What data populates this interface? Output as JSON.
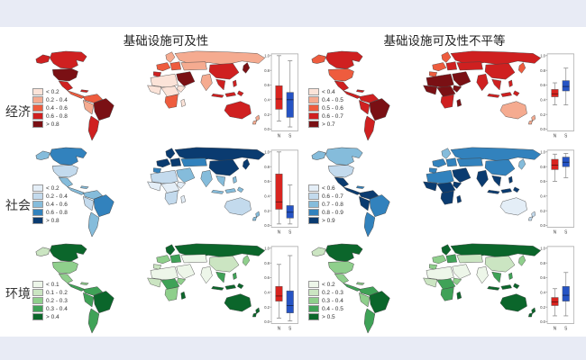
{
  "page": {
    "background": "#e8ebf5",
    "figure_background": "#ffffff"
  },
  "headers": {
    "left": "基础设施可及性",
    "right": "基础设施可及性不平等"
  },
  "rows": [
    {
      "label": "经济"
    },
    {
      "label": "社会"
    },
    {
      "label": "环境"
    }
  ],
  "boxplot_axis": {
    "y_ticks": [
      "1.0",
      "0.8",
      "0.6",
      "0.4",
      "0.2",
      "0.0"
    ],
    "ylim": [
      0,
      1
    ],
    "n_label": "N",
    "s_label": "S",
    "n_color": "#d8241f",
    "s_color": "#2553c4"
  },
  "chart_data": [
    {
      "id": "economy-access",
      "type": "choropleth+box",
      "row": "经济",
      "column": "基础设施可及性",
      "palette": [
        "#fbe3d8",
        "#f5ab90",
        "#ee5c3e",
        "#cf2020",
        "#7a1014"
      ],
      "legend": [
        "< 0.2",
        "0.2 - 0.4",
        "0.4 - 0.6",
        "0.6 - 0.8",
        "> 0.8"
      ],
      "regions": {
        "americas": {
          "alaska": 3,
          "canada": 3,
          "usa": 4,
          "mexico": 3,
          "camerica": 2,
          "caribbean": 3,
          "colombia": 2,
          "peru": 1,
          "brazil": 4,
          "argentina": 3
        },
        "eastern": {
          "scandinavia": 1,
          "weurope": 2,
          "iberia": 3,
          "eeurope": 2,
          "russia": 1,
          "casia": 1,
          "mideast": 4,
          "nafrica": 0,
          "wafrica": 0,
          "cafrica": 0,
          "eafrica": 0,
          "safrica": 2,
          "madagascar": 0,
          "india": 1,
          "china": 3,
          "seasia": 3,
          "indonesia": 3,
          "philippines": 3,
          "japan": 4,
          "australia": 3,
          "nz": 1
        }
      },
      "boxplot": {
        "N": {
          "whisker_low": 0.11,
          "q1": 0.27,
          "median": 0.41,
          "q3": 0.59,
          "whisker_high": 1.0
        },
        "S": {
          "whisker_low": 0.03,
          "q1": 0.16,
          "median": 0.4,
          "q3": 0.5,
          "whisker_high": 0.93
        }
      }
    },
    {
      "id": "economy-inequality",
      "type": "choropleth+box",
      "row": "经济",
      "column": "基础设施可及性不平等",
      "palette": [
        "#fbe3d8",
        "#f5ab90",
        "#ee5c3e",
        "#cf2020",
        "#7a1014"
      ],
      "legend": [
        "< 0.4",
        "0.4 - 0.5",
        "0.5 - 0.6",
        "0.6 - 0.7",
        "> 0.7"
      ],
      "regions": {
        "americas": {
          "alaska": 2,
          "canada": 3,
          "usa": 2,
          "mexico": 3,
          "camerica": 3,
          "caribbean": 3,
          "colombia": 3,
          "peru": 3,
          "brazil": 4,
          "argentina": 3
        },
        "eastern": {
          "scandinavia": 2,
          "weurope": 2,
          "iberia": 2,
          "eeurope": 3,
          "russia": 3,
          "casia": 3,
          "mideast": 4,
          "nafrica": 4,
          "wafrica": 4,
          "cafrica": 4,
          "eafrica": 4,
          "safrica": 3,
          "madagascar": 4,
          "india": 3,
          "china": 3,
          "seasia": 3,
          "indonesia": 3,
          "philippines": 3,
          "japan": 2,
          "australia": 1,
          "nz": 1
        }
      },
      "boxplot": {
        "N": {
          "whisker_low": 0.33,
          "q1": 0.44,
          "median": 0.48,
          "q3": 0.54,
          "whisker_high": 0.63
        },
        "S": {
          "whisker_low": 0.33,
          "q1": 0.52,
          "median": 0.58,
          "q3": 0.66,
          "whisker_high": 0.83
        }
      }
    },
    {
      "id": "society-access",
      "type": "choropleth+box",
      "row": "社会",
      "column": "基础设施可及性",
      "palette": [
        "#e4eef7",
        "#c3daed",
        "#85bcdb",
        "#3282bd",
        "#0a3b70"
      ],
      "legend": [
        "< 0.2",
        "0.2 - 0.4",
        "0.4 - 0.6",
        "0.6 - 0.8",
        "> 0.8"
      ],
      "regions": {
        "americas": {
          "alaska": 2,
          "canada": 3,
          "usa": 1,
          "mexico": 2,
          "camerica": 2,
          "caribbean": 2,
          "colombia": 2,
          "peru": 1,
          "brazil": 3,
          "argentina": 2
        },
        "eastern": {
          "scandinavia": 4,
          "weurope": 4,
          "iberia": 3,
          "eeurope": 4,
          "russia": 4,
          "casia": 3,
          "mideast": 2,
          "nafrica": 1,
          "wafrica": 0,
          "cafrica": 0,
          "eafrica": 0,
          "safrica": 1,
          "madagascar": 0,
          "india": 2,
          "china": 4,
          "seasia": 2,
          "indonesia": 2,
          "philippines": 2,
          "japan": 4,
          "australia": 1,
          "nz": 2
        }
      },
      "boxplot": {
        "N": {
          "whisker_low": 0.02,
          "q1": 0.22,
          "median": 0.32,
          "q3": 0.7,
          "whisker_high": 1.0
        },
        "S": {
          "whisker_low": 0.02,
          "q1": 0.1,
          "median": 0.18,
          "q3": 0.27,
          "whisker_high": 0.55
        }
      }
    },
    {
      "id": "society-inequality",
      "type": "choropleth+box",
      "row": "社会",
      "column": "基础设施可及性不平等",
      "palette": [
        "#e4eef7",
        "#c3daed",
        "#85bcdb",
        "#3282bd",
        "#0a3b70"
      ],
      "legend": [
        "< 0.6",
        "0.6 - 0.7",
        "0.7 - 0.8",
        "0.8 - 0.9",
        "> 0.9"
      ],
      "regions": {
        "americas": {
          "alaska": 2,
          "canada": 2,
          "usa": 1,
          "mexico": 4,
          "camerica": 4,
          "caribbean": 3,
          "colombia": 4,
          "peru": 4,
          "brazil": 3,
          "argentina": 3
        },
        "eastern": {
          "scandinavia": 2,
          "weurope": 3,
          "iberia": 3,
          "eeurope": 3,
          "russia": 3,
          "casia": 3,
          "mideast": 4,
          "nafrica": 3,
          "wafrica": 4,
          "cafrica": 4,
          "eafrica": 4,
          "safrica": 4,
          "madagascar": 4,
          "india": 4,
          "china": 3,
          "seasia": 4,
          "indonesia": 4,
          "philippines": 4,
          "japan": 2,
          "australia": 0,
          "nz": 1
        }
      },
      "boxplot": {
        "N": {
          "whisker_low": 0.6,
          "q1": 0.76,
          "median": 0.82,
          "q3": 0.9,
          "whisker_high": 0.97
        },
        "S": {
          "whisker_low": 0.65,
          "q1": 0.8,
          "median": 0.86,
          "q3": 0.93,
          "whisker_high": 0.98
        }
      }
    },
    {
      "id": "environment-access",
      "type": "choropleth+box",
      "row": "环境",
      "column": "基础设施可及性",
      "palette": [
        "#edf6e9",
        "#cbe5c2",
        "#8fcf8c",
        "#3fa257",
        "#0b662b"
      ],
      "legend": [
        "< 0.1",
        "0.1 - 0.2",
        "0.2 - 0.3",
        "0.3 - 0.4",
        "> 0.4"
      ],
      "regions": {
        "americas": {
          "alaska": 1,
          "canada": 4,
          "usa": 2,
          "mexico": 2,
          "camerica": 3,
          "caribbean": 2,
          "colombia": 3,
          "peru": 3,
          "brazil": 4,
          "argentina": 3
        },
        "eastern": {
          "scandinavia": 4,
          "weurope": 2,
          "iberia": 1,
          "eeurope": 3,
          "russia": 4,
          "casia": 0,
          "mideast": 0,
          "nafrica": 0,
          "wafrica": 1,
          "cafrica": 3,
          "eafrica": 2,
          "safrica": 2,
          "madagascar": 4,
          "india": 0,
          "china": 1,
          "seasia": 3,
          "indonesia": 4,
          "philippines": 3,
          "japan": 2,
          "australia": 4,
          "nz": 4
        }
      },
      "boxplot": {
        "N": {
          "whisker_low": 0.05,
          "q1": 0.28,
          "median": 0.35,
          "q3": 0.48,
          "whisker_high": 0.78
        },
        "S": {
          "whisker_low": 0.01,
          "q1": 0.12,
          "median": 0.22,
          "q3": 0.42,
          "whisker_high": 0.9
        }
      }
    },
    {
      "id": "environment-inequality",
      "type": "choropleth+box",
      "row": "环境",
      "column": "基础设施可及性不平等",
      "palette": [
        "#edf6e9",
        "#cbe5c2",
        "#8fcf8c",
        "#3fa257",
        "#0b662b"
      ],
      "legend": [
        "< 0.2",
        "0.2 - 0.3",
        "0.3 - 0.4",
        "0.4 - 0.5",
        "> 0.5"
      ],
      "regions": {
        "americas": {
          "alaska": 1,
          "canada": 4,
          "usa": 2,
          "mexico": 2,
          "camerica": 3,
          "caribbean": 2,
          "colombia": 3,
          "peru": 2,
          "brazil": 4,
          "argentina": 3
        },
        "eastern": {
          "scandinavia": 4,
          "weurope": 2,
          "iberia": 2,
          "eeurope": 3,
          "russia": 4,
          "casia": 1,
          "mideast": 0,
          "nafrica": 0,
          "wafrica": 1,
          "cafrica": 3,
          "eafrica": 2,
          "safrica": 3,
          "madagascar": 4,
          "india": 0,
          "china": 1,
          "seasia": 3,
          "indonesia": 4,
          "philippines": 3,
          "japan": 2,
          "australia": 4,
          "nz": 4
        }
      },
      "boxplot": {
        "N": {
          "whisker_low": 0.08,
          "q1": 0.22,
          "median": 0.27,
          "q3": 0.33,
          "whisker_high": 0.45
        },
        "S": {
          "whisker_low": 0.08,
          "q1": 0.28,
          "median": 0.36,
          "q3": 0.48,
          "whisker_high": 0.67
        }
      }
    }
  ]
}
